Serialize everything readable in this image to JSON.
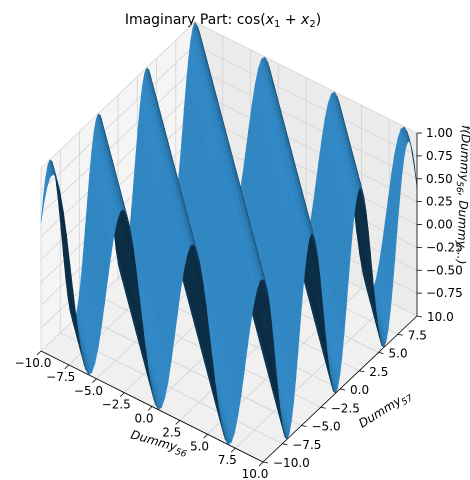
{
  "chart_data": {
    "type": "surface",
    "title": {
      "prefix": "Imaginary Part: cos(",
      "var1": "x",
      "sub1": "1",
      "plus": " + ",
      "var2": "x",
      "sub2": "2",
      "suffix": ")"
    },
    "xlabel": {
      "base": "Dummy",
      "sub": "56"
    },
    "ylabel": {
      "base": "Dummy",
      "sub": "57"
    },
    "zlabel": "f(Dummy",
    "zlabel_sub": "56",
    "zlabel_rest": ", Dummy",
    "zlabel_end": "…)",
    "x_range": [
      -10,
      10
    ],
    "y_range": [
      -10,
      10
    ],
    "z_range": [
      -1,
      1
    ],
    "x_ticks": [
      -10,
      -7.5,
      -5,
      -2.5,
      0,
      2.5,
      5,
      7.5,
      10
    ],
    "x_tick_labels": [
      "−10.0",
      "−7.5",
      "−5.0",
      "−2.5",
      "0.0",
      "2.5",
      "5.0",
      "7.5",
      "10.0"
    ],
    "y_ticks": [
      -10,
      -7.5,
      -5,
      -2.5,
      0,
      2.5,
      5,
      7.5,
      10
    ],
    "y_tick_labels": [
      "−10.0",
      "−7.5",
      "−5.0",
      "−2.5",
      "0.0",
      "2.5",
      "5.0",
      "7.5",
      "10.0"
    ],
    "z_ticks": [
      -0.75,
      -0.5,
      -0.25,
      0,
      0.25,
      0.5,
      0.75,
      1
    ],
    "z_tick_labels": [
      "−0.75",
      "−0.50",
      "−0.25",
      "0.00",
      "0.25",
      "0.50",
      "0.75",
      "1.00"
    ],
    "function": "cos(x1 + x2)",
    "grid": true,
    "surface_color": "#1f77b4"
  }
}
